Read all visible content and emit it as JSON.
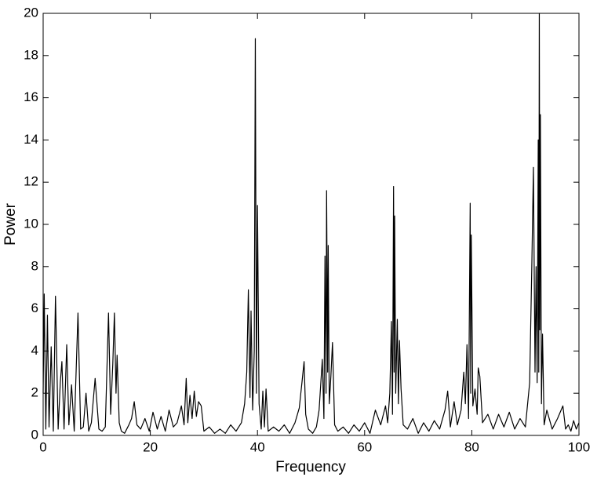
{
  "chart_data": {
    "type": "line",
    "xlabel": "Frequency",
    "ylabel": "Power",
    "xlim": [
      0,
      100
    ],
    "ylim": [
      0,
      20
    ],
    "xticks": [
      0,
      20,
      40,
      60,
      80,
      100
    ],
    "yticks": [
      0,
      2,
      4,
      6,
      8,
      10,
      12,
      14,
      16,
      18,
      20
    ],
    "x": [
      0,
      0.2,
      0.5,
      0.8,
      1.1,
      1.5,
      1.9,
      2.3,
      2.8,
      3.2,
      3.5,
      3.9,
      4.4,
      4.8,
      5.3,
      5.8,
      6.5,
      7,
      7.5,
      8,
      8.5,
      9,
      9.7,
      10.4,
      11,
      11.6,
      12.2,
      12.6,
      13,
      13.3,
      13.6,
      13.8,
      14.2,
      14.6,
      15.2,
      16,
      16.5,
      17,
      17.5,
      18.2,
      19,
      19.8,
      20.5,
      21.3,
      22,
      22.8,
      23.5,
      24.3,
      25,
      25.8,
      26.3,
      26.7,
      27,
      27.4,
      27.8,
      28.2,
      28.6,
      29,
      29.5,
      30,
      31,
      32,
      33,
      34,
      35,
      36,
      37,
      37.6,
      38,
      38.3,
      38.6,
      38.8,
      39.1,
      39.4,
      39.6,
      39.8,
      40,
      40.3,
      40.7,
      41,
      41.3,
      41.6,
      42,
      43,
      44,
      45,
      46,
      47,
      47.8,
      48.3,
      48.7,
      49,
      49.5,
      50.3,
      51,
      51.5,
      52.1,
      52.4,
      52.6,
      52.8,
      52.9,
      53.1,
      53.2,
      53.4,
      53.7,
      54,
      54.4,
      55,
      56,
      57,
      58,
      59,
      60,
      61,
      62,
      63,
      63.9,
      64.3,
      64.7,
      65,
      65.2,
      65.4,
      65.5,
      65.6,
      65.8,
      66.1,
      66.3,
      66.5,
      66.8,
      67.2,
      68,
      69,
      70,
      71,
      72,
      73,
      74,
      75,
      75.5,
      76,
      76.7,
      77.3,
      78,
      78.5,
      78.8,
      79.1,
      79.4,
      79.7,
      79.8,
      79.9,
      80.2,
      80.6,
      81,
      81.2,
      81.5,
      82,
      83,
      84,
      85,
      86,
      87,
      88,
      89,
      90,
      90.8,
      91.2,
      91.5,
      91.8,
      92,
      92.2,
      92.4,
      92.5,
      92.6,
      92.7,
      92.8,
      93,
      93.2,
      93.5,
      94,
      95,
      96,
      97,
      97.5,
      98,
      98.5,
      99,
      99.5,
      100
    ],
    "series": [
      {
        "color": "#000000",
        "values": [
          2,
          6.7,
          0.3,
          5.7,
          0.4,
          4.2,
          0.2,
          6.6,
          0.3,
          2.5,
          3.5,
          0.3,
          4.3,
          0.5,
          2.4,
          0.2,
          5.8,
          0.3,
          0.4,
          2,
          0.2,
          0.6,
          2.7,
          0.3,
          0.2,
          0.4,
          5.8,
          1,
          3.4,
          5.8,
          2,
          3.8,
          0.6,
          0.2,
          0.1,
          0.5,
          0.8,
          1.6,
          0.5,
          0.3,
          0.8,
          0.2,
          1.1,
          0.3,
          0.9,
          0.2,
          1.2,
          0.4,
          0.6,
          1.4,
          0.5,
          2.7,
          0.6,
          1.9,
          0.8,
          2.1,
          0.9,
          1.6,
          1.4,
          0.2,
          0.4,
          0.1,
          0.3,
          0.1,
          0.5,
          0.2,
          0.6,
          1.5,
          3,
          6.9,
          1.8,
          5.9,
          1.2,
          4,
          18.8,
          2,
          10.9,
          1.5,
          0.3,
          2.1,
          0.4,
          2.2,
          0.2,
          0.4,
          0.2,
          0.5,
          0.1,
          0.6,
          1.3,
          2.5,
          3.5,
          1,
          0.3,
          0.1,
          0.4,
          1.2,
          3.6,
          0.8,
          8.5,
          2,
          11.6,
          3,
          9,
          1.5,
          2.8,
          4.4,
          0.5,
          0.2,
          0.4,
          0.1,
          0.5,
          0.2,
          0.6,
          0.1,
          1.2,
          0.5,
          1.4,
          0.6,
          2,
          5.4,
          1,
          11.8,
          3,
          10.4,
          2,
          5.5,
          1.5,
          4.5,
          2.2,
          0.5,
          0.3,
          0.8,
          0.1,
          0.6,
          0.2,
          0.7,
          0.3,
          1.2,
          2.1,
          0.4,
          1.6,
          0.5,
          1.2,
          3,
          1.5,
          4.3,
          0.8,
          11,
          2,
          9.5,
          1.4,
          2.2,
          1,
          3.2,
          2.8,
          0.6,
          1,
          0.3,
          1,
          0.4,
          1.1,
          0.3,
          0.8,
          0.4,
          2.5,
          8,
          12.7,
          3,
          8,
          2.5,
          14,
          3,
          20,
          5,
          15.2,
          1.5,
          4.8,
          0.5,
          1.2,
          0.3,
          0.8,
          1.4,
          0.3,
          0.5,
          0.2,
          0.7,
          0.3,
          0.6
        ]
      }
    ]
  }
}
